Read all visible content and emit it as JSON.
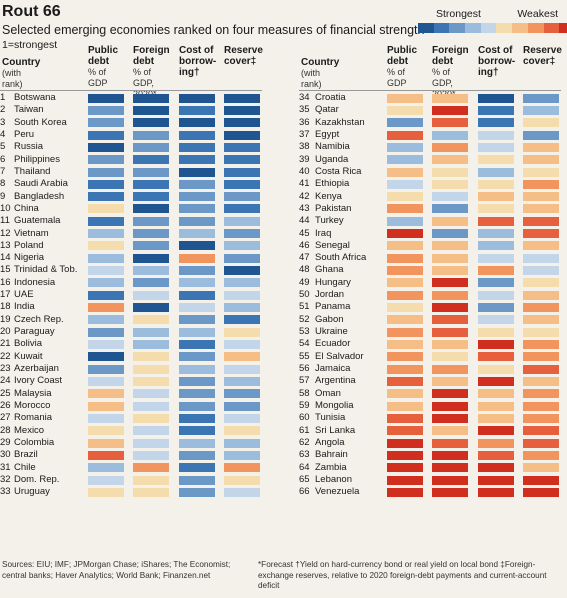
{
  "title": "Rout 66",
  "subtitle": "Selected emerging economies ranked on four measures of financial strength",
  "note": "1=strongest",
  "legend": {
    "strong": "Strongest",
    "weak": "Weakest"
  },
  "colors": [
    "#1f5591",
    "#3c75b4",
    "#6c98c8",
    "#9bbcdc",
    "#c3d5e8",
    "#f5dcac",
    "#f5be87",
    "#f2945e",
    "#e6603d",
    "#d02f20"
  ],
  "headers": {
    "country": "Country",
    "with_rank": "(with rank)",
    "public": "Public",
    "debt": "debt",
    "gdp": "% of GDP",
    "foreign": "Foreign",
    "fdebt": "debt",
    "gdp2020": "% of GDP, 2020*",
    "cost": "Cost of",
    "borrow": "borrow-",
    "ing": "ing†",
    "reserve": "Reserve",
    "cover": "cover‡"
  },
  "footnotes": {
    "sources": "Sources: EIU; IMF; JPMorgan Chase; iShares; The Economist;",
    "sources2": "central banks; Haver Analytics; World Bank; Finanzen.net",
    "forecast": "*Forecast  †Yield on hard-currency bond or real yield on local bond  ‡Foreign-",
    "forecast2": "exchange reserves, relative to 2020 foreign-debt payments and current-account deficit"
  },
  "chart_data": {
    "type": "heatmap",
    "title": "Rout 66",
    "subtitle": "Selected emerging economies ranked on four measures of financial strength",
    "measures": [
      "Public debt",
      "Foreign debt",
      "Cost of borrowing",
      "Reserve cover"
    ],
    "color_scale": "1=strongest (blue) to 10=weakest (red)",
    "rows": [
      {
        "rank": "1",
        "country": "Botswana",
        "values": [
          1,
          1,
          1,
          1
        ]
      },
      {
        "rank": "2",
        "country": "Taiwan",
        "values": [
          3,
          1,
          2,
          1
        ]
      },
      {
        "rank": "3",
        "country": "South Korea",
        "values": [
          3,
          1,
          1,
          1
        ]
      },
      {
        "rank": "4",
        "country": "Peru",
        "values": [
          2,
          3,
          2,
          1
        ]
      },
      {
        "rank": "5",
        "country": "Russia",
        "values": [
          1,
          3,
          2,
          2
        ]
      },
      {
        "rank": "6",
        "country": "Philippines",
        "values": [
          3,
          2,
          2,
          2
        ]
      },
      {
        "rank": "7",
        "country": "Thailand",
        "values": [
          3,
          3,
          1,
          2
        ]
      },
      {
        "rank": "8",
        "country": "Saudi Arabia",
        "values": [
          2,
          2,
          3,
          2
        ]
      },
      {
        "rank": "9",
        "country": "Bangladesh",
        "values": [
          2,
          2,
          3,
          3
        ]
      },
      {
        "rank": "10",
        "country": "China",
        "values": [
          6,
          1,
          3,
          2
        ]
      },
      {
        "rank": "11",
        "country": "Guatemala",
        "values": [
          2,
          3,
          3,
          4
        ]
      },
      {
        "rank": "12",
        "country": "Vietnam",
        "values": [
          4,
          3,
          4,
          3
        ]
      },
      {
        "rank": "13",
        "country": "Poland",
        "values": [
          6,
          3,
          1,
          4
        ]
      },
      {
        "rank": "14",
        "country": "Nigeria",
        "values": [
          4,
          1,
          8,
          3
        ]
      },
      {
        "rank": "15",
        "country": "Trinidad & Tob.",
        "values": [
          5,
          4,
          3,
          1
        ]
      },
      {
        "rank": "16",
        "country": "Indonesia",
        "values": [
          4,
          3,
          4,
          4
        ]
      },
      {
        "rank": "17",
        "country": "UAE",
        "values": [
          2,
          5,
          2,
          5
        ]
      },
      {
        "rank": "18",
        "country": "India",
        "values": [
          8,
          1,
          5,
          4
        ]
      },
      {
        "rank": "19",
        "country": "Czech Rep.",
        "values": [
          4,
          6,
          3,
          2
        ]
      },
      {
        "rank": "20",
        "country": "Paraguay",
        "values": [
          3,
          4,
          4,
          6
        ]
      },
      {
        "rank": "21",
        "country": "Bolivia",
        "values": [
          5,
          4,
          2,
          5
        ]
      },
      {
        "rank": "22",
        "country": "Kuwait",
        "values": [
          1,
          6,
          3,
          7
        ]
      },
      {
        "rank": "23",
        "country": "Azerbaijan",
        "values": [
          3,
          6,
          4,
          5
        ]
      },
      {
        "rank": "24",
        "country": "Ivory Coast",
        "values": [
          5,
          6,
          3,
          4
        ]
      },
      {
        "rank": "25",
        "country": "Malaysia",
        "values": [
          7,
          5,
          3,
          3
        ]
      },
      {
        "rank": "26",
        "country": "Morocco",
        "values": [
          7,
          5,
          3,
          3
        ]
      },
      {
        "rank": "27",
        "country": "Romania",
        "values": [
          5,
          6,
          2,
          5
        ]
      },
      {
        "rank": "28",
        "country": "Mexico",
        "values": [
          6,
          5,
          2,
          6
        ]
      },
      {
        "rank": "29",
        "country": "Colombia",
        "values": [
          7,
          5,
          4,
          4
        ]
      },
      {
        "rank": "30",
        "country": "Brazil",
        "values": [
          9,
          5,
          3,
          4
        ]
      },
      {
        "rank": "31",
        "country": "Chile",
        "values": [
          4,
          8,
          2,
          8
        ]
      },
      {
        "rank": "32",
        "country": "Dom. Rep.",
        "values": [
          5,
          6,
          3,
          6
        ]
      },
      {
        "rank": "33",
        "country": "Uruguay",
        "values": [
          6,
          6,
          3,
          5
        ]
      },
      {
        "rank": "34",
        "country": "Croatia",
        "values": [
          7,
          7,
          1,
          3
        ]
      },
      {
        "rank": "35",
        "country": "Qatar",
        "values": [
          6,
          10,
          2,
          4
        ]
      },
      {
        "rank": "36",
        "country": "Kazakhstan",
        "values": [
          3,
          9,
          2,
          6
        ]
      },
      {
        "rank": "37",
        "country": "Egypt",
        "values": [
          9,
          4,
          5,
          3
        ]
      },
      {
        "rank": "38",
        "country": "Namibia",
        "values": [
          4,
          8,
          5,
          7
        ]
      },
      {
        "rank": "39",
        "country": "Uganda",
        "values": [
          4,
          7,
          6,
          7
        ]
      },
      {
        "rank": "40",
        "country": "Costa Rica",
        "values": [
          7,
          6,
          4,
          6
        ]
      },
      {
        "rank": "41",
        "country": "Ethiopia",
        "values": [
          5,
          6,
          6,
          8
        ]
      },
      {
        "rank": "42",
        "country": "Kenya",
        "values": [
          6,
          5,
          7,
          7
        ]
      },
      {
        "rank": "43",
        "country": "Pakistan",
        "values": [
          8,
          3,
          6,
          7
        ]
      },
      {
        "rank": "44",
        "country": "Turkey",
        "values": [
          4,
          7,
          9,
          9
        ]
      },
      {
        "rank": "45",
        "country": "Iraq",
        "values": [
          10,
          3,
          4,
          9
        ]
      },
      {
        "rank": "46",
        "country": "Senegal",
        "values": [
          7,
          7,
          4,
          7
        ]
      },
      {
        "rank": "47",
        "country": "South Africa",
        "values": [
          8,
          7,
          5,
          5
        ]
      },
      {
        "rank": "48",
        "country": "Ghana",
        "values": [
          8,
          7,
          8,
          5
        ]
      },
      {
        "rank": "49",
        "country": "Hungary",
        "values": [
          7,
          10,
          3,
          6
        ]
      },
      {
        "rank": "50",
        "country": "Jordan",
        "values": [
          8,
          8,
          5,
          7
        ]
      },
      {
        "rank": "51",
        "country": "Panama",
        "values": [
          6,
          10,
          3,
          8
        ]
      },
      {
        "rank": "52",
        "country": "Gabon",
        "values": [
          7,
          9,
          5,
          7
        ]
      },
      {
        "rank": "53",
        "country": "Ukraine",
        "values": [
          8,
          9,
          6,
          6
        ]
      },
      {
        "rank": "54",
        "country": "Ecuador",
        "values": [
          7,
          7,
          10,
          8
        ]
      },
      {
        "rank": "55",
        "country": "El Salvador",
        "values": [
          8,
          6,
          9,
          8
        ]
      },
      {
        "rank": "56",
        "country": "Jamaica",
        "values": [
          8,
          8,
          6,
          9
        ]
      },
      {
        "rank": "57",
        "country": "Argentina",
        "values": [
          9,
          7,
          10,
          7
        ]
      },
      {
        "rank": "58",
        "country": "Oman",
        "values": [
          7,
          10,
          7,
          8
        ]
      },
      {
        "rank": "59",
        "country": "Mongolia",
        "values": [
          7,
          10,
          7,
          8
        ]
      },
      {
        "rank": "60",
        "country": "Tunisia",
        "values": [
          9,
          10,
          7,
          8
        ]
      },
      {
        "rank": "61",
        "country": "Sri Lanka",
        "values": [
          9,
          7,
          10,
          9
        ]
      },
      {
        "rank": "62",
        "country": "Angola",
        "values": [
          10,
          9,
          8,
          9
        ]
      },
      {
        "rank": "63",
        "country": "Bahrain",
        "values": [
          10,
          10,
          9,
          8
        ]
      },
      {
        "rank": "64",
        "country": "Zambia",
        "values": [
          10,
          10,
          10,
          7
        ]
      },
      {
        "rank": "65",
        "country": "Lebanon",
        "values": [
          10,
          10,
          10,
          10
        ]
      },
      {
        "rank": "66",
        "country": "Venezuela",
        "values": [
          10,
          10,
          10,
          10
        ]
      }
    ]
  }
}
